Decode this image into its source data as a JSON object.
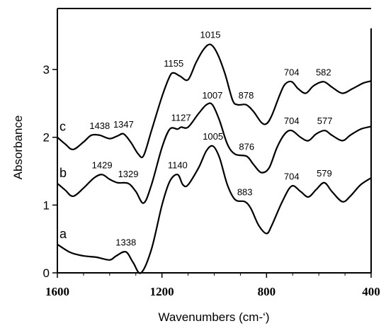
{
  "chart_data": {
    "type": "line",
    "title": "",
    "xlabel": "Wavenumbers   (cm-‘)",
    "ylabel": "Absorbance",
    "xlim": [
      1600,
      400
    ],
    "ylim": [
      0,
      3.9
    ],
    "x_ticks": [
      {
        "value": 1600,
        "label": "1600"
      },
      {
        "value": 1200,
        "label": "1200"
      },
      {
        "value": 800,
        "label": "800"
      },
      {
        "value": 400,
        "label": "400"
      }
    ],
    "y_ticks": [
      {
        "value": 0,
        "label": "0"
      },
      {
        "value": 1,
        "label": "1"
      },
      {
        "value": 2,
        "label": "2"
      },
      {
        "value": 3,
        "label": "3"
      }
    ],
    "series": [
      {
        "label": "a",
        "points": [
          [
            1600,
            0.42
          ],
          [
            1550,
            0.3
          ],
          [
            1500,
            0.25
          ],
          [
            1450,
            0.23
          ],
          [
            1400,
            0.19
          ],
          [
            1375,
            0.25
          ],
          [
            1338,
            0.31
          ],
          [
            1310,
            0.15
          ],
          [
            1280,
            0.0
          ],
          [
            1240,
            0.35
          ],
          [
            1200,
            1.0
          ],
          [
            1170,
            1.35
          ],
          [
            1140,
            1.45
          ],
          [
            1120,
            1.3
          ],
          [
            1100,
            1.3
          ],
          [
            1060,
            1.55
          ],
          [
            1030,
            1.8
          ],
          [
            1005,
            1.87
          ],
          [
            980,
            1.7
          ],
          [
            950,
            1.3
          ],
          [
            920,
            1.08
          ],
          [
            883,
            1.05
          ],
          [
            860,
            0.95
          ],
          [
            830,
            0.7
          ],
          [
            800,
            0.58
          ],
          [
            780,
            0.7
          ],
          [
            740,
            1.05
          ],
          [
            704,
            1.28
          ],
          [
            670,
            1.2
          ],
          [
            640,
            1.12
          ],
          [
            610,
            1.23
          ],
          [
            579,
            1.33
          ],
          [
            550,
            1.2
          ],
          [
            510,
            1.05
          ],
          [
            480,
            1.13
          ],
          [
            440,
            1.3
          ],
          [
            400,
            1.4
          ]
        ]
      },
      {
        "label": "b",
        "points": [
          [
            1600,
            1.32
          ],
          [
            1570,
            1.22
          ],
          [
            1540,
            1.13
          ],
          [
            1500,
            1.25
          ],
          [
            1460,
            1.4
          ],
          [
            1429,
            1.45
          ],
          [
            1400,
            1.38
          ],
          [
            1370,
            1.33
          ],
          [
            1329,
            1.32
          ],
          [
            1300,
            1.2
          ],
          [
            1270,
            1.03
          ],
          [
            1240,
            1.3
          ],
          [
            1200,
            1.85
          ],
          [
            1170,
            2.12
          ],
          [
            1140,
            2.12
          ],
          [
            1127,
            2.15
          ],
          [
            1100,
            2.15
          ],
          [
            1060,
            2.35
          ],
          [
            1030,
            2.48
          ],
          [
            1007,
            2.48
          ],
          [
            980,
            2.25
          ],
          [
            950,
            1.9
          ],
          [
            920,
            1.75
          ],
          [
            876,
            1.72
          ],
          [
            850,
            1.6
          ],
          [
            820,
            1.48
          ],
          [
            790,
            1.55
          ],
          [
            760,
            1.85
          ],
          [
            730,
            2.05
          ],
          [
            704,
            2.1
          ],
          [
            670,
            2.0
          ],
          [
            640,
            1.95
          ],
          [
            610,
            2.05
          ],
          [
            577,
            2.1
          ],
          [
            550,
            2.03
          ],
          [
            510,
            1.95
          ],
          [
            480,
            2.03
          ],
          [
            440,
            2.12
          ],
          [
            400,
            2.16
          ]
        ]
      },
      {
        "label": "c",
        "points": [
          [
            1600,
            2.0
          ],
          [
            1570,
            1.9
          ],
          [
            1540,
            1.82
          ],
          [
            1500,
            1.93
          ],
          [
            1470,
            2.03
          ],
          [
            1438,
            2.03
          ],
          [
            1400,
            1.98
          ],
          [
            1370,
            2.02
          ],
          [
            1347,
            2.05
          ],
          [
            1320,
            1.93
          ],
          [
            1290,
            1.75
          ],
          [
            1270,
            1.73
          ],
          [
            1240,
            2.1
          ],
          [
            1200,
            2.6
          ],
          [
            1170,
            2.9
          ],
          [
            1155,
            2.95
          ],
          [
            1130,
            2.9
          ],
          [
            1100,
            2.85
          ],
          [
            1070,
            3.1
          ],
          [
            1040,
            3.3
          ],
          [
            1015,
            3.37
          ],
          [
            990,
            3.25
          ],
          [
            960,
            2.95
          ],
          [
            930,
            2.55
          ],
          [
            910,
            2.48
          ],
          [
            878,
            2.48
          ],
          [
            850,
            2.38
          ],
          [
            820,
            2.22
          ],
          [
            800,
            2.2
          ],
          [
            780,
            2.32
          ],
          [
            750,
            2.62
          ],
          [
            730,
            2.78
          ],
          [
            704,
            2.82
          ],
          [
            680,
            2.72
          ],
          [
            650,
            2.65
          ],
          [
            620,
            2.76
          ],
          [
            582,
            2.82
          ],
          [
            550,
            2.74
          ],
          [
            510,
            2.65
          ],
          [
            470,
            2.72
          ],
          [
            430,
            2.8
          ],
          [
            400,
            2.83
          ]
        ]
      }
    ],
    "peak_labels": [
      {
        "series": "a",
        "x": 1338,
        "y": 0.31,
        "text": "1338"
      },
      {
        "series": "a",
        "x": 1140,
        "y": 1.45,
        "text": "1140"
      },
      {
        "series": "a",
        "x": 1005,
        "y": 1.87,
        "text": "1005"
      },
      {
        "series": "a",
        "x": 883,
        "y": 1.05,
        "text": "883"
      },
      {
        "series": "a",
        "x": 704,
        "y": 1.28,
        "text": "704"
      },
      {
        "series": "a",
        "x": 579,
        "y": 1.33,
        "text": "579"
      },
      {
        "series": "b",
        "x": 1429,
        "y": 1.45,
        "text": "1429"
      },
      {
        "series": "b",
        "x": 1329,
        "y": 1.32,
        "text": "1329"
      },
      {
        "series": "b",
        "x": 1127,
        "y": 2.15,
        "text": "1127"
      },
      {
        "series": "b",
        "x": 1007,
        "y": 2.48,
        "text": "1007"
      },
      {
        "series": "b",
        "x": 876,
        "y": 1.72,
        "text": "876"
      },
      {
        "series": "b",
        "x": 704,
        "y": 2.1,
        "text": "704"
      },
      {
        "series": "b",
        "x": 577,
        "y": 2.1,
        "text": "577"
      },
      {
        "series": "c",
        "x": 1438,
        "y": 2.03,
        "text": "1438"
      },
      {
        "series": "c",
        "x": 1347,
        "y": 2.05,
        "text": "1347"
      },
      {
        "series": "c",
        "x": 1155,
        "y": 2.95,
        "text": "1155"
      },
      {
        "series": "c",
        "x": 1015,
        "y": 3.37,
        "text": "1015"
      },
      {
        "series": "c",
        "x": 878,
        "y": 2.48,
        "text": "878"
      },
      {
        "series": "c",
        "x": 704,
        "y": 2.82,
        "text": "704"
      },
      {
        "series": "c",
        "x": 582,
        "y": 2.82,
        "text": "582"
      }
    ],
    "grid": false,
    "legend": "none"
  }
}
